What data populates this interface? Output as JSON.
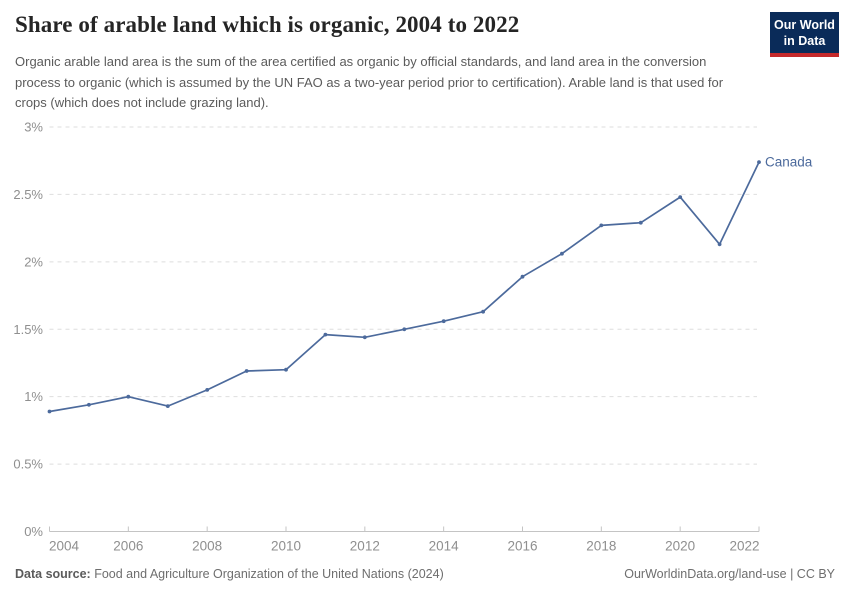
{
  "header": {
    "title": "Share of arable land which is organic, 2004 to 2022",
    "subtitle": "Organic arable land area is the sum of the area certified as organic by official standards, and land area in the conversion process to organic (which is assumed by the UN FAO as a two-year period prior to certification). Arable land is that used for crops (which does not include grazing land)."
  },
  "logo": {
    "line1": "Our World",
    "line2": "in Data",
    "bg_color": "#0a2b59",
    "bar_color": "#c5292b"
  },
  "footer": {
    "datasource_label": "Data source:",
    "datasource_text": "Food and Agriculture Organization of the United Nations (2024)",
    "credit": "OurWorldinData.org/land-use | CC BY"
  },
  "chart_data": {
    "type": "line",
    "title": "Share of arable land which is organic, 2004 to 2022",
    "xlabel": "",
    "ylabel": "",
    "x": [
      2004,
      2005,
      2006,
      2007,
      2008,
      2009,
      2010,
      2011,
      2012,
      2013,
      2014,
      2015,
      2016,
      2017,
      2018,
      2019,
      2020,
      2021,
      2022
    ],
    "series": [
      {
        "name": "Canada",
        "color": "#4c6a9c",
        "values": [
          0.89,
          0.94,
          1.0,
          0.93,
          1.05,
          1.19,
          1.2,
          1.46,
          1.44,
          1.5,
          1.56,
          1.63,
          1.89,
          2.06,
          2.27,
          2.29,
          2.48,
          2.13,
          2.74
        ]
      }
    ],
    "xlim": [
      2004,
      2022
    ],
    "ylim": [
      0,
      3
    ],
    "xticks": [
      2004,
      2006,
      2008,
      2010,
      2012,
      2014,
      2016,
      2018,
      2020,
      2022
    ],
    "yticks": [
      {
        "value": 0,
        "label": "0%"
      },
      {
        "value": 0.5,
        "label": "0.5%"
      },
      {
        "value": 1,
        "label": "1%"
      },
      {
        "value": 1.5,
        "label": "1.5%"
      },
      {
        "value": 2,
        "label": "2%"
      },
      {
        "value": 2.5,
        "label": "2.5%"
      },
      {
        "value": 3,
        "label": "3%"
      }
    ],
    "grid": "horizontal-dashed",
    "legend_position": "end-of-line-label"
  },
  "colors": {
    "grid_line": "#dedede",
    "axis_line": "#c4c4c4",
    "tick_label": "#8f8f8f",
    "series_blue": "#4c6a9c"
  }
}
